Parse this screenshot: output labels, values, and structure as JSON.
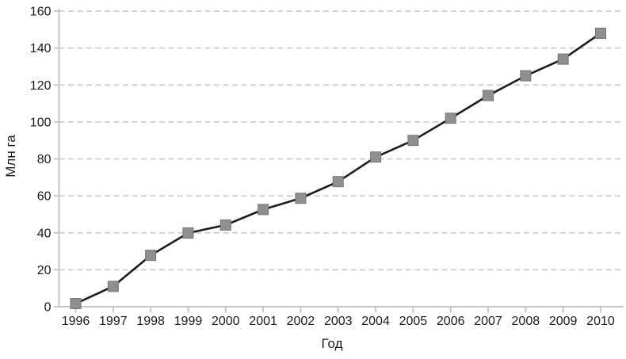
{
  "chart_data": {
    "type": "line",
    "title": "",
    "xlabel": "Год",
    "ylabel": "Млн га",
    "categories": [
      "1996",
      "1997",
      "1998",
      "1999",
      "2000",
      "2001",
      "2002",
      "2003",
      "2004",
      "2005",
      "2006",
      "2007",
      "2008",
      "2009",
      "2010"
    ],
    "values": [
      1.7,
      11,
      27.8,
      39.9,
      44.2,
      52.6,
      58.7,
      67.7,
      81,
      90,
      102,
      114.3,
      125,
      134,
      148
    ],
    "ylim": [
      0,
      160
    ],
    "ytick_step": 20,
    "ytick_labels": [
      "0",
      "20",
      "40",
      "60",
      "80",
      "100",
      "120",
      "140",
      "160"
    ],
    "grid": "horizontal-dashed",
    "legend": "none",
    "marker": "square",
    "colors": {
      "line": "#1b1b1b",
      "marker_fill": "#8f8f8f",
      "marker_stroke": "#757575",
      "grid": "#cdcdcd",
      "axis": "#c6c6c6",
      "text": "#1b1b1b"
    }
  }
}
